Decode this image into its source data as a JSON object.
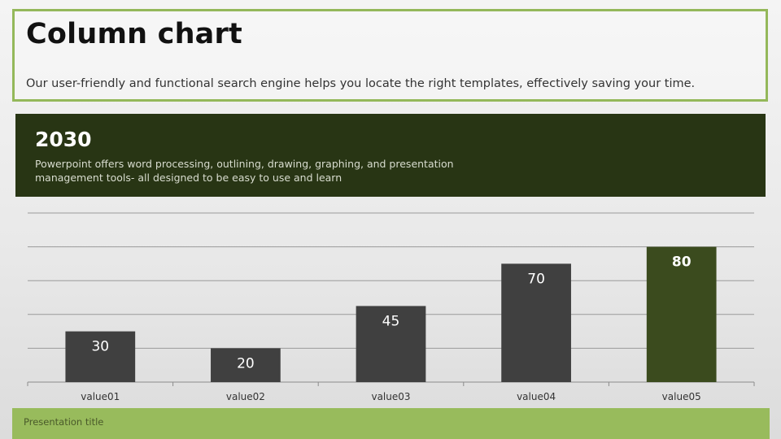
{
  "header": {
    "title": "Column chart",
    "subtitle": "Our user-friendly and functional search engine helps you locate the right templates, effectively saving your time."
  },
  "band": {
    "year": "2030",
    "description": "Powerpoint offers word processing, outlining, drawing, graphing, and presentation management tools- all designed to be easy to use and learn"
  },
  "footer": {
    "text": "Presentation title"
  },
  "colors": {
    "accent_green": "#94b85a",
    "dark_band": "#283514",
    "bar_default": "#404040",
    "bar_highlight": "#3b4b1e"
  },
  "chart_data": {
    "type": "bar",
    "categories": [
      "value01",
      "value02",
      "value03",
      "value04",
      "value05"
    ],
    "values": [
      30,
      20,
      45,
      70,
      80
    ],
    "data_labels": [
      "30",
      "20",
      "45",
      "70",
      "80"
    ],
    "highlight_index": 4,
    "ylim": [
      0,
      100
    ],
    "gridline_step": 20,
    "grid": true,
    "legend": "none",
    "title": "",
    "xlabel": "",
    "ylabel": ""
  }
}
